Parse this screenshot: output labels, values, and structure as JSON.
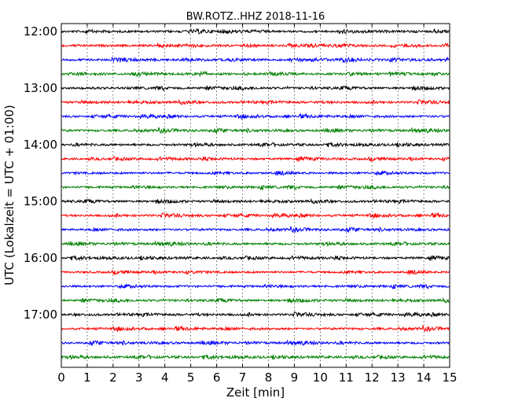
{
  "chart_data": {
    "type": "line",
    "title": "BW.ROTZ..HHZ 2018-11-16",
    "xlabel": "Zeit  [min]",
    "ylabel": "UTC (Lokalzeit = UTC + 01:00)",
    "xlim": [
      0,
      15
    ],
    "xticks": [
      "0",
      "1",
      "2",
      "3",
      "4",
      "5",
      "6",
      "7",
      "8",
      "9",
      "10",
      "11",
      "12",
      "13",
      "14",
      "15"
    ],
    "yticks": [
      "12:00",
      "13:00",
      "14:00",
      "15:00",
      "16:00",
      "17:00"
    ],
    "grid": "vertical dotted",
    "row_interval_min": 15,
    "color_cycle": [
      "#000000",
      "#ff0000",
      "#0000ff",
      "#008000"
    ],
    "series": [
      {
        "name": "12:00"
      },
      {
        "name": "12:15"
      },
      {
        "name": "12:30"
      },
      {
        "name": "12:45"
      },
      {
        "name": "13:00"
      },
      {
        "name": "13:15"
      },
      {
        "name": "13:30"
      },
      {
        "name": "13:45"
      },
      {
        "name": "14:00"
      },
      {
        "name": "14:15"
      },
      {
        "name": "14:30"
      },
      {
        "name": "14:45"
      },
      {
        "name": "15:00"
      },
      {
        "name": "15:15"
      },
      {
        "name": "15:30"
      },
      {
        "name": "15:45"
      },
      {
        "name": "16:00"
      },
      {
        "name": "16:15"
      },
      {
        "name": "16:30"
      },
      {
        "name": "16:45"
      },
      {
        "name": "17:00"
      },
      {
        "name": "17:15"
      },
      {
        "name": "17:30"
      },
      {
        "name": "17:45"
      }
    ]
  }
}
